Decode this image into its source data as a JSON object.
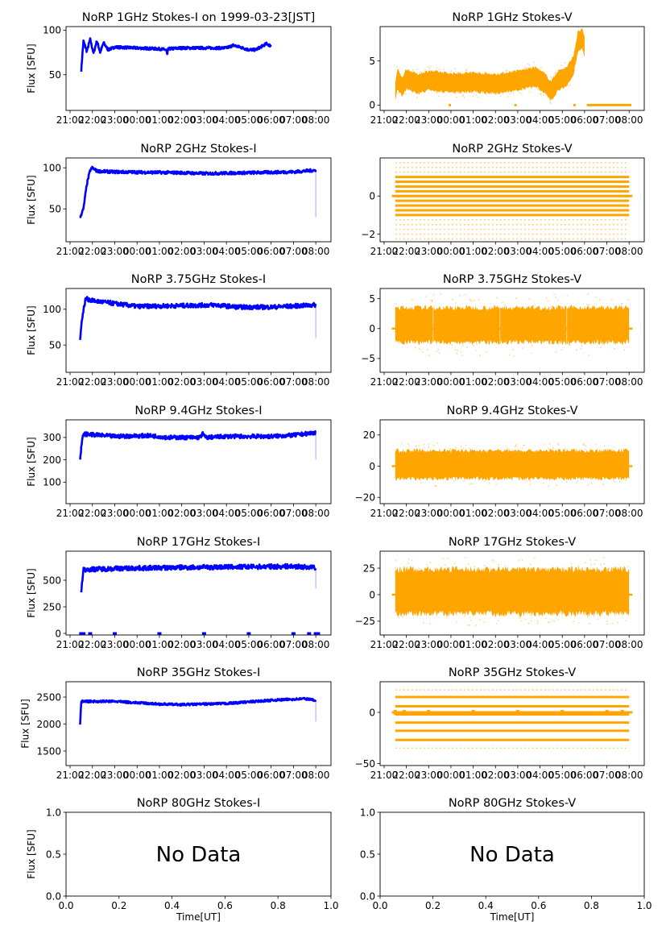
{
  "chart_data": {
    "type": "scatter",
    "figure": "NoRP daily flux plots",
    "time_axis": {
      "start": "21:00",
      "unit": "hours since 21:00 UT",
      "xlim": [
        -0.18,
        11.68
      ],
      "tick_labels": [
        "21:00",
        "22:00",
        "23:00",
        "00:00",
        "01:00",
        "02:00",
        "03:00",
        "04:00",
        "05:00",
        "06:00",
        "07:00",
        "08:00"
      ]
    },
    "ylabel": "Flux [SFU]",
    "xlabel": "Time[UT]",
    "colors": {
      "stokes_i": "#0000ff",
      "stokes_v": "#ffa500"
    },
    "panels": [
      {
        "title": "NoRP 1GHz Stokes-I on 1999-03-23[JST]",
        "kind": "I",
        "ylim": [
          10,
          104
        ],
        "yticks": [
          [
            50,
            "50"
          ],
          [
            100,
            "100"
          ]
        ],
        "spread": 1.5,
        "profile": [
          [
            0.5,
            55
          ],
          [
            0.6,
            88
          ],
          [
            0.75,
            76
          ],
          [
            0.9,
            90
          ],
          [
            1.05,
            74
          ],
          [
            1.2,
            88
          ],
          [
            1.35,
            75
          ],
          [
            1.5,
            86
          ],
          [
            1.7,
            78
          ],
          [
            2,
            81
          ],
          [
            3,
            80
          ],
          [
            4,
            79
          ],
          [
            4.3,
            78
          ],
          [
            4.35,
            72
          ],
          [
            4.4,
            79
          ],
          [
            5,
            80
          ],
          [
            6,
            80
          ],
          [
            7,
            80
          ],
          [
            7.3,
            83
          ],
          [
            7.6,
            81
          ],
          [
            8,
            78
          ],
          [
            8.3,
            78
          ],
          [
            8.6,
            82
          ],
          [
            8.8,
            85
          ],
          [
            9,
            82
          ]
        ]
      },
      {
        "title": "NoRP 1GHz Stokes-V",
        "kind": "V",
        "ylim": [
          -0.6,
          8.9
        ],
        "yticks": [
          [
            0,
            "0"
          ],
          [
            5,
            "5"
          ]
        ],
        "half_width": 1.1,
        "outer": 1.7,
        "profile": [
          [
            0.5,
            1.5
          ],
          [
            0.6,
            3
          ],
          [
            0.8,
            2
          ],
          [
            1,
            3
          ],
          [
            1.5,
            2.4
          ],
          [
            2,
            2.8
          ],
          [
            3,
            2.5
          ],
          [
            4,
            2.6
          ],
          [
            5,
            2.4
          ],
          [
            6,
            2.8
          ],
          [
            6.8,
            3.2
          ],
          [
            7.2,
            2.5
          ],
          [
            7.5,
            1.6
          ],
          [
            7.8,
            2.8
          ],
          [
            8.2,
            3.2
          ],
          [
            8.5,
            4.5
          ],
          [
            8.7,
            7.2
          ],
          [
            8.9,
            7.5
          ],
          [
            9,
            6.6
          ]
        ],
        "zero_segments": [
          [
            2.9,
            3.0
          ],
          [
            5.85,
            5.95
          ],
          [
            8.5,
            8.6
          ],
          [
            9.1,
            11.1
          ]
        ]
      },
      {
        "title": "NoRP 2GHz Stokes-I",
        "kind": "I",
        "ylim": [
          10,
          112
        ],
        "yticks": [
          [
            50,
            "50"
          ],
          [
            100,
            "100"
          ]
        ],
        "spread": 1.8,
        "drop": [
          11.0,
          40
        ],
        "profile": [
          [
            0.45,
            40
          ],
          [
            0.6,
            50
          ],
          [
            0.75,
            80
          ],
          [
            0.9,
            97
          ],
          [
            1.0,
            100
          ],
          [
            1.2,
            96
          ],
          [
            2,
            95
          ],
          [
            5,
            94
          ],
          [
            6,
            93
          ],
          [
            8,
            94
          ],
          [
            10,
            95
          ],
          [
            10.95,
            97
          ],
          [
            11,
            96
          ]
        ]
      },
      {
        "title": "NoRP 2GHz Stokes-V",
        "kind": "levels",
        "ylim": [
          -2.4,
          2.0
        ],
        "yticks": [
          [
            -2,
            "−2"
          ],
          [
            0,
            "0"
          ]
        ],
        "span": [
          0.5,
          11.0
        ],
        "zero_span": [
          0.35,
          11.15
        ],
        "dense_levels": [
          -1.0,
          -0.75,
          -0.5,
          -0.25,
          0,
          0.25,
          0.5,
          0.75,
          1.0
        ],
        "sparse_levels": [
          -2.25,
          -2.0,
          -1.75,
          -1.5,
          -1.25,
          1.25,
          1.5,
          1.75
        ]
      },
      {
        "title": "NoRP 3.75GHz Stokes-I",
        "kind": "I",
        "ylim": [
          12,
          129
        ],
        "yticks": [
          [
            50,
            "50"
          ],
          [
            100,
            "100"
          ]
        ],
        "spread": 3,
        "drop": [
          11.0,
          60
        ],
        "profile": [
          [
            0.45,
            60
          ],
          [
            0.55,
            90
          ],
          [
            0.7,
            115
          ],
          [
            1,
            112
          ],
          [
            2,
            108
          ],
          [
            3,
            104
          ],
          [
            5,
            105
          ],
          [
            6.5,
            106
          ],
          [
            7.5,
            103
          ],
          [
            9,
            103
          ],
          [
            11,
            106
          ]
        ]
      },
      {
        "title": "NoRP 3.75GHz Stokes-V",
        "kind": "V",
        "ylim": [
          -7.3,
          6.7
        ],
        "yticks": [
          [
            -5,
            "−5"
          ],
          [
            0,
            "0"
          ],
          [
            5,
            "5"
          ]
        ],
        "half_width": 2.9,
        "outer": 5.2,
        "zero_span": [
          0.35,
          11.15
        ],
        "profile": [
          [
            0.5,
            0.6
          ],
          [
            11,
            0.6
          ]
        ],
        "gaps": [
          2.2,
          5.2,
          8.2
        ]
      },
      {
        "title": "NoRP 9.4GHz Stokes-I",
        "kind": "I",
        "ylim": [
          4,
          379
        ],
        "yticks": [
          [
            100,
            "100"
          ],
          [
            200,
            "200"
          ],
          [
            300,
            "300"
          ]
        ],
        "spread": 9,
        "drop": [
          11.0,
          200
        ],
        "profile": [
          [
            0.45,
            200
          ],
          [
            0.55,
            300
          ],
          [
            0.65,
            315
          ],
          [
            2,
            305
          ],
          [
            3.5,
            308
          ],
          [
            4,
            305
          ],
          [
            4.3,
            300
          ],
          [
            5.8,
            300
          ],
          [
            5.95,
            318
          ],
          [
            6.05,
            300
          ],
          [
            7,
            305
          ],
          [
            9,
            305
          ],
          [
            10,
            310
          ],
          [
            11,
            322
          ]
        ]
      },
      {
        "title": "NoRP 9.4GHz Stokes-V",
        "kind": "V",
        "ylim": [
          -24,
          29.7
        ],
        "yticks": [
          [
            -20,
            "−20"
          ],
          [
            0,
            "0"
          ],
          [
            20,
            "20"
          ]
        ],
        "half_width": 9,
        "outer": 14,
        "zero_span": [
          0.35,
          11.15
        ],
        "profile": [
          [
            0.5,
            1
          ],
          [
            11,
            1
          ]
        ]
      },
      {
        "title": "NoRP 17GHz Stokes-I",
        "kind": "I",
        "ylim": [
          -15,
          773
        ],
        "yticks": [
          [
            0,
            "0"
          ],
          [
            250,
            "250"
          ],
          [
            500,
            "500"
          ]
        ],
        "spread": 22,
        "drop": [
          11.0,
          420
        ],
        "profile": [
          [
            0.5,
            400
          ],
          [
            0.6,
            600
          ],
          [
            2,
            610
          ],
          [
            5,
            620
          ],
          [
            10,
            630
          ],
          [
            10.9,
            620
          ],
          [
            11,
            600
          ]
        ],
        "zero_points": [
          0.5,
          0.6,
          0.9,
          2.0,
          4.0,
          6.0,
          8.0,
          10.0,
          10.7,
          11.0,
          11.1
        ]
      },
      {
        "title": "NoRP 17GHz Stokes-V",
        "kind": "V",
        "ylim": [
          -38,
          41
        ],
        "yticks": [
          [
            -25,
            "−25"
          ],
          [
            0,
            "0"
          ],
          [
            25,
            "25"
          ]
        ],
        "half_width": 21,
        "outer": 32,
        "zero_span": [
          0.35,
          11.15
        ],
        "profile": [
          [
            0.5,
            3
          ],
          [
            11,
            3
          ]
        ]
      },
      {
        "title": "NoRP 35GHz Stokes-I",
        "kind": "I",
        "ylim": [
          1231,
          2784
        ],
        "yticks": [
          [
            1500,
            "1500"
          ],
          [
            2000,
            "2000"
          ],
          [
            2500,
            "2500"
          ]
        ],
        "spread": 20,
        "drop": [
          11.0,
          2050
        ],
        "profile": [
          [
            0.45,
            2000
          ],
          [
            0.5,
            2420
          ],
          [
            2,
            2420
          ],
          [
            4,
            2370
          ],
          [
            5,
            2360
          ],
          [
            7,
            2380
          ],
          [
            9,
            2440
          ],
          [
            10.5,
            2470
          ],
          [
            11,
            2440
          ]
        ]
      },
      {
        "title": "NoRP 35GHz Stokes-V",
        "kind": "levels",
        "ylim": [
          -52,
          30
        ],
        "yticks": [
          [
            -50,
            "−50"
          ],
          [
            0,
            "0"
          ]
        ],
        "span": [
          0.5,
          11.0
        ],
        "zero_span": [
          0.35,
          11.15
        ],
        "dense_levels": [
          15,
          6,
          -2,
          -10,
          -18,
          -27
        ],
        "sparse_levels": [
          22,
          -35
        ],
        "zero_points": [
          0.5,
          0.9,
          2.0,
          4.0,
          6.0,
          8.0,
          10.0,
          10.7
        ]
      },
      {
        "title": "NoRP 80GHz Stokes-I",
        "kind": "empty",
        "message": "No Data"
      },
      {
        "title": "NoRP 80GHz Stokes-V",
        "kind": "empty",
        "message": "No Data"
      }
    ],
    "empty_axes": {
      "xlim": [
        0,
        1
      ],
      "ylim": [
        0,
        1
      ],
      "xticks": [
        [
          0,
          "0.0"
        ],
        [
          0.2,
          "0.2"
        ],
        [
          0.4,
          "0.4"
        ],
        [
          0.6,
          "0.6"
        ],
        [
          0.8,
          "0.8"
        ],
        [
          1,
          "1.0"
        ]
      ],
      "yticks": [
        [
          0,
          "0.0"
        ],
        [
          0.5,
          "0.5"
        ],
        [
          1,
          "1.0"
        ]
      ]
    }
  }
}
